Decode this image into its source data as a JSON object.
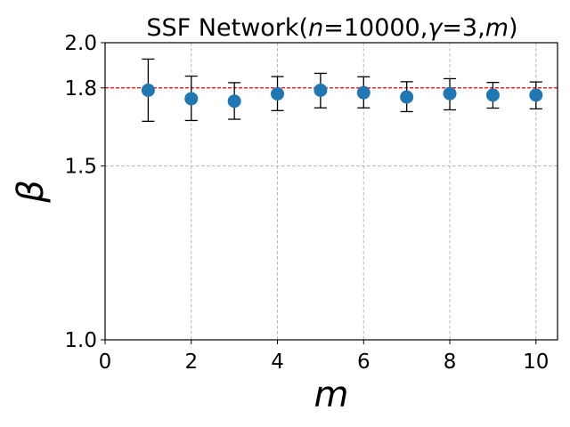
{
  "chart_data": {
    "type": "scatter",
    "title": "SSF Network(n=10000,γ=3,m)",
    "title_parts": [
      {
        "text": "SSF Network(",
        "italic": false
      },
      {
        "text": "n",
        "italic": true
      },
      {
        "text": "=10000,",
        "italic": false
      },
      {
        "text": "γ",
        "italic": true
      },
      {
        "text": "=3,",
        "italic": false
      },
      {
        "text": "m",
        "italic": true
      },
      {
        "text": ")",
        "italic": false
      }
    ],
    "xlabel": "m",
    "ylabel": "β",
    "xlim": [
      0,
      10.5
    ],
    "ylim": [
      1.0,
      2.0
    ],
    "y_scale": "log",
    "x_ticks": [
      0,
      2,
      4,
      6,
      8,
      10
    ],
    "x_tick_labels": [
      "0",
      "2",
      "4",
      "6",
      "8",
      "10"
    ],
    "y_ticks": [
      1.0,
      1.5,
      1.8,
      2.0
    ],
    "y_tick_labels": [
      "1.0",
      "1.5",
      "1.8",
      "2.0"
    ],
    "grid": true,
    "reference_line": {
      "y": 1.8,
      "color": "#ff0000",
      "style": "dashed"
    },
    "marker_color": "#1f77b4",
    "errorbar_color": "#000000",
    "points": [
      {
        "x": 1,
        "y": 1.79,
        "lower": 1.665,
        "upper": 1.925
      },
      {
        "x": 2,
        "y": 1.755,
        "lower": 1.668,
        "upper": 1.85
      },
      {
        "x": 3,
        "y": 1.745,
        "lower": 1.673,
        "upper": 1.822
      },
      {
        "x": 4,
        "y": 1.775,
        "lower": 1.707,
        "upper": 1.848
      },
      {
        "x": 5,
        "y": 1.79,
        "lower": 1.718,
        "upper": 1.862
      },
      {
        "x": 6,
        "y": 1.78,
        "lower": 1.718,
        "upper": 1.847
      },
      {
        "x": 7,
        "y": 1.762,
        "lower": 1.703,
        "upper": 1.826
      },
      {
        "x": 8,
        "y": 1.776,
        "lower": 1.71,
        "upper": 1.839
      },
      {
        "x": 9,
        "y": 1.77,
        "lower": 1.717,
        "upper": 1.823
      },
      {
        "x": 10,
        "y": 1.77,
        "lower": 1.714,
        "upper": 1.825
      }
    ]
  }
}
